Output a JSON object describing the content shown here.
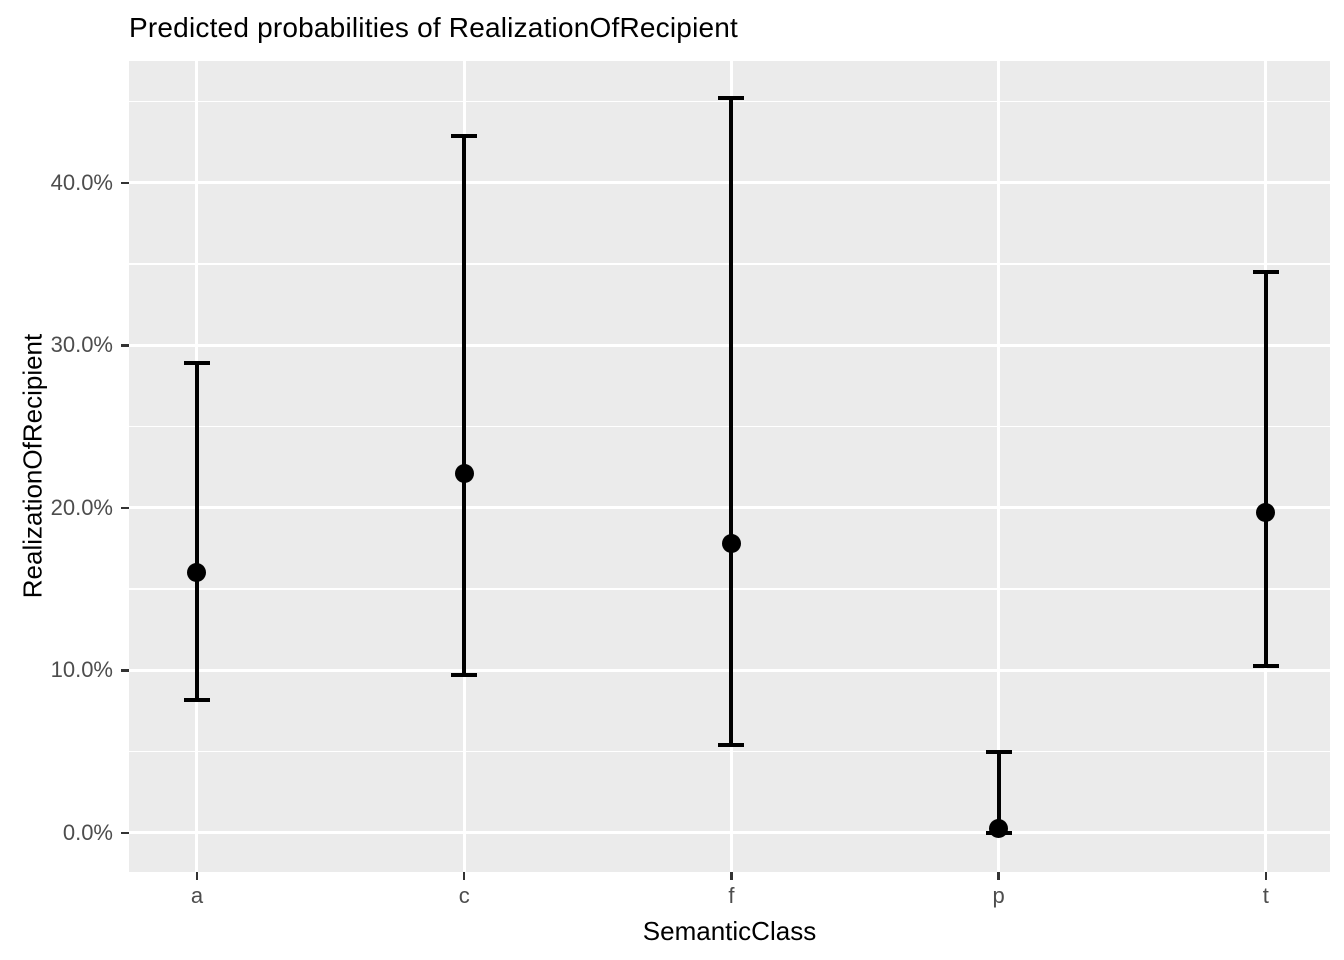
{
  "chart_data": {
    "type": "pointrange",
    "title": "Predicted probabilities of RealizationOfRecipient",
    "xlabel": "SemanticClass",
    "ylabel": "RealizationOfRecipient",
    "categories": [
      "a",
      "c",
      "f",
      "p",
      "t"
    ],
    "points": [
      {
        "category": "a",
        "estimate": 16.0,
        "lower": 8.2,
        "upper": 28.9
      },
      {
        "category": "c",
        "estimate": 22.1,
        "lower": 9.7,
        "upper": 42.9
      },
      {
        "category": "f",
        "estimate": 17.8,
        "lower": 5.4,
        "upper": 45.2
      },
      {
        "category": "p",
        "estimate": 0.3,
        "lower": 0.0,
        "upper": 5.0
      },
      {
        "category": "t",
        "estimate": 19.7,
        "lower": 10.3,
        "upper": 34.5
      }
    ],
    "y_ticks": [
      {
        "value": 0,
        "label": "0.0%"
      },
      {
        "value": 10,
        "label": "10.0%"
      },
      {
        "value": 20,
        "label": "20.0%"
      },
      {
        "value": 30,
        "label": "30.0%"
      },
      {
        "value": 40,
        "label": "40.0%"
      }
    ],
    "y_minor_gridlines": [
      5,
      15,
      25,
      35,
      45
    ],
    "ylim": [
      -2.4,
      47.5
    ],
    "grid": "on",
    "legend": "none",
    "colors": {
      "panel_bg": "#EBEBEB",
      "gridline": "#FFFFFF",
      "geom": "#000000",
      "axis_text": "#4D4D4D",
      "tick_mark": "#333333",
      "title_text": "#000000"
    }
  }
}
